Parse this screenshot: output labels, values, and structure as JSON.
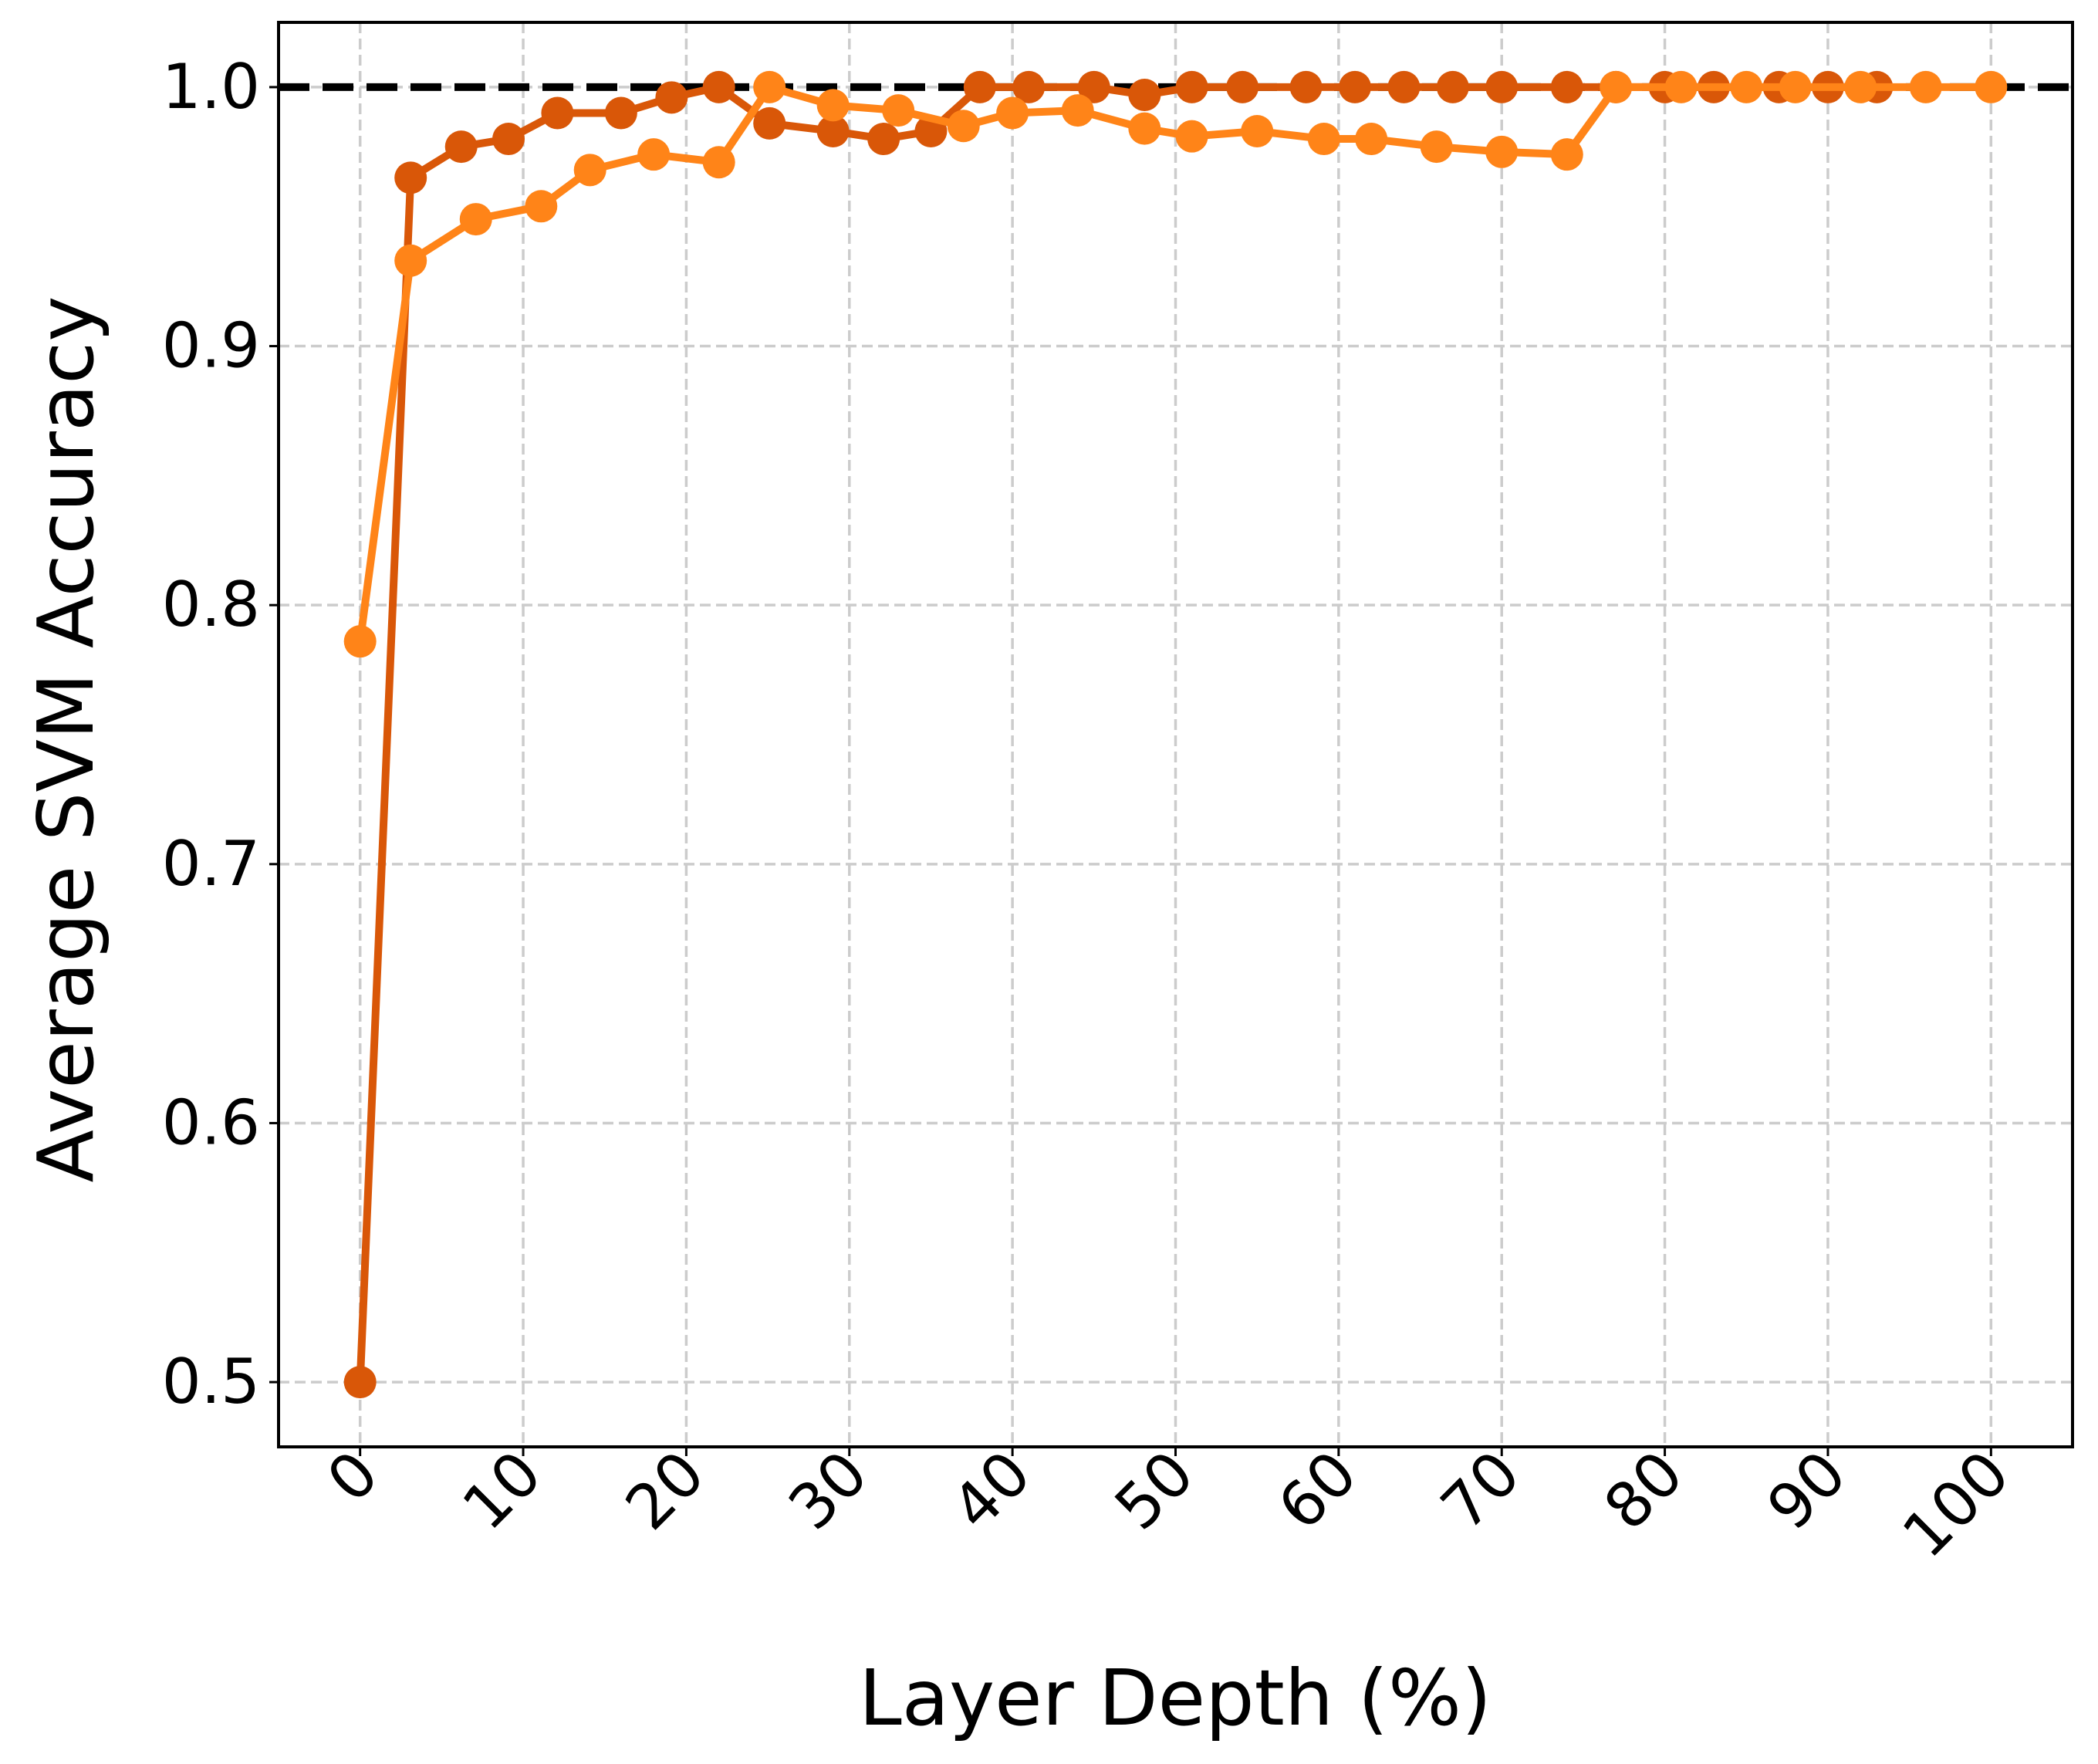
{
  "chart_data": {
    "type": "line",
    "xlabel": "Layer Depth (%)",
    "ylabel": "Average SVM Accuracy",
    "xlim": [
      -5,
      105
    ],
    "ylim": [
      0.475,
      1.025
    ],
    "xticks": [
      0,
      10,
      20,
      30,
      40,
      50,
      60,
      70,
      80,
      90,
      100
    ],
    "yticks": [
      0.5,
      0.6,
      0.7,
      0.8,
      0.9,
      {
        "value": 1.0,
        "label": "1.0"
      }
    ],
    "grid": true,
    "reference_line": 1.0,
    "reference_color": "#000000",
    "series": [
      {
        "color": "#d95708",
        "x": [
          0,
          3.1,
          6.2,
          9.1,
          12.1,
          16.0,
          19.1,
          22.0,
          25.1,
          29.0,
          32.1,
          35.0,
          38.0,
          41.0,
          45.0,
          48.1,
          51.0,
          54.1,
          58.0,
          61.0,
          64.0,
          67.0,
          70.0,
          74.0,
          77.0,
          80.0,
          83.0,
          87.0,
          90.0,
          93.0
        ],
        "values": [
          0.5,
          0.965,
          0.977,
          0.98,
          0.99,
          0.99,
          0.996,
          1.0,
          0.986,
          0.983,
          0.98,
          0.983,
          1.0,
          1.0,
          1.0,
          0.997,
          1.0,
          1.0,
          1.0,
          1.0,
          1.0,
          1.0,
          1.0,
          1.0,
          1.0,
          1.0,
          1.0,
          1.0,
          1.0,
          1.0
        ]
      },
      {
        "color": "#ff8418",
        "x": [
          0,
          3.1,
          7.1,
          11.1,
          14.1,
          18.0,
          22.0,
          25.1,
          29.0,
          33.0,
          37.0,
          40.0,
          44.0,
          48.1,
          51.0,
          55.0,
          59.1,
          62.0,
          66.0,
          70.0,
          74.0,
          77.0,
          81.0,
          85.0,
          88.0,
          92.0,
          96.0,
          100
        ],
        "values": [
          0.786,
          0.933,
          0.949,
          0.954,
          0.968,
          0.974,
          0.971,
          1.0,
          0.993,
          0.991,
          0.985,
          0.99,
          0.991,
          0.984,
          0.981,
          0.983,
          0.98,
          0.98,
          0.977,
          0.975,
          0.974,
          1.0,
          1.0,
          1.0,
          1.0,
          1.0,
          1.0,
          1.0
        ]
      }
    ]
  }
}
